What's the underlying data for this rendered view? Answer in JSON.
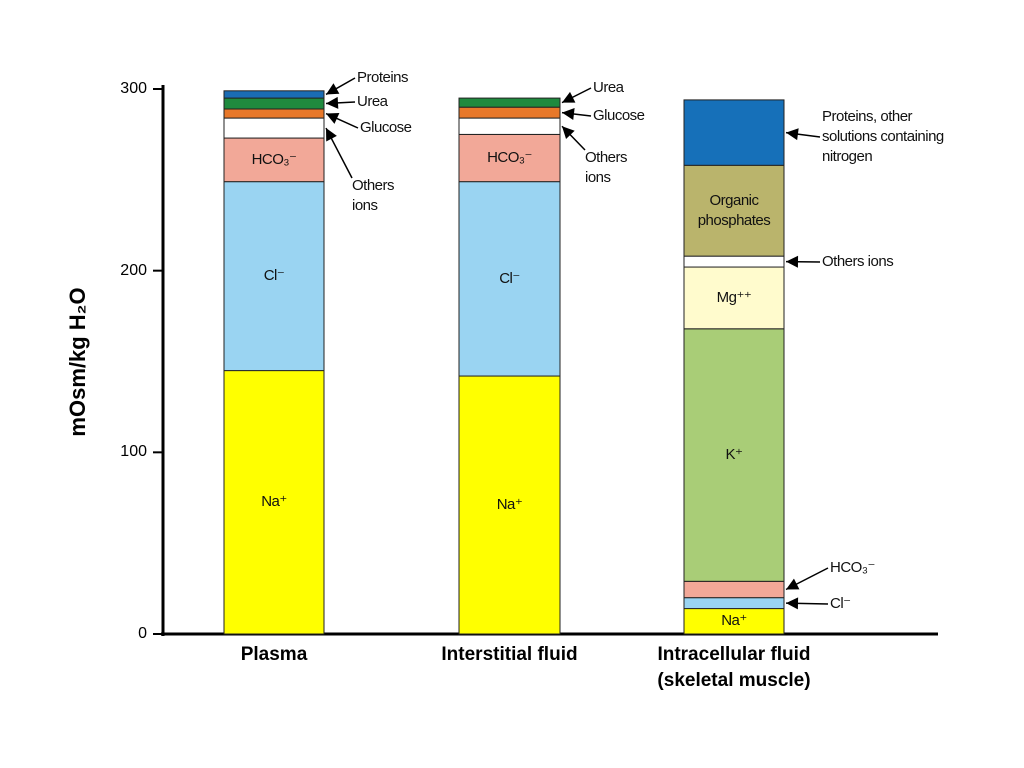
{
  "chart_data": {
    "type": "stacked_bar",
    "ylabel": "mOsm/kg H₂O",
    "ylim": [
      0,
      300
    ],
    "yticks": [
      0,
      100,
      200,
      300
    ],
    "categories": [
      "Plasma",
      "Interstitial fluid",
      "Intracellular fluid (skeletal muscle)"
    ],
    "stacks": [
      [
        {
          "label": "Na⁺",
          "value": 145,
          "color": "#ffff00"
        },
        {
          "label": "Cl⁻",
          "value": 104,
          "color": "#9ad4f2"
        },
        {
          "label": "HCO₃⁻",
          "value": 24,
          "color": "#f2a898"
        },
        {
          "label": "Others ions",
          "value": 11,
          "color": "#ffffff"
        },
        {
          "label": "Glucose",
          "value": 5,
          "color": "#e8782a"
        },
        {
          "label": "Urea",
          "value": 6,
          "color": "#1f8a3e"
        },
        {
          "label": "Proteins",
          "value": 4,
          "color": "#1a6cb4"
        }
      ],
      [
        {
          "label": "Na⁺",
          "value": 142,
          "color": "#ffff00"
        },
        {
          "label": "Cl⁻",
          "value": 107,
          "color": "#9ad4f2"
        },
        {
          "label": "HCO₃⁻",
          "value": 26,
          "color": "#f2a898"
        },
        {
          "label": "Others ions",
          "value": 9,
          "color": "#ffffff"
        },
        {
          "label": "Glucose",
          "value": 6,
          "color": "#e8782a"
        },
        {
          "label": "Urea",
          "value": 5,
          "color": "#1f8a3e"
        }
      ],
      [
        {
          "label": "Na⁺",
          "value": 14,
          "color": "#ffff00"
        },
        {
          "label": "Cl⁻",
          "value": 6,
          "color": "#9ad4f2"
        },
        {
          "label": "HCO₃⁻",
          "value": 9,
          "color": "#f2a898"
        },
        {
          "label": "K⁺",
          "value": 139,
          "color": "#a9cd77"
        },
        {
          "label": "Mg⁺⁺",
          "value": 34,
          "color": "#fffbcd"
        },
        {
          "label": "Others ions",
          "value": 6,
          "color": "#ffffff"
        },
        {
          "label": "Organic phosphates",
          "value": 50,
          "color": "#bab46c"
        },
        {
          "label": "Proteins, other solutions containing nitrogen",
          "value": 36,
          "color": "#1670b9"
        }
      ]
    ]
  }
}
